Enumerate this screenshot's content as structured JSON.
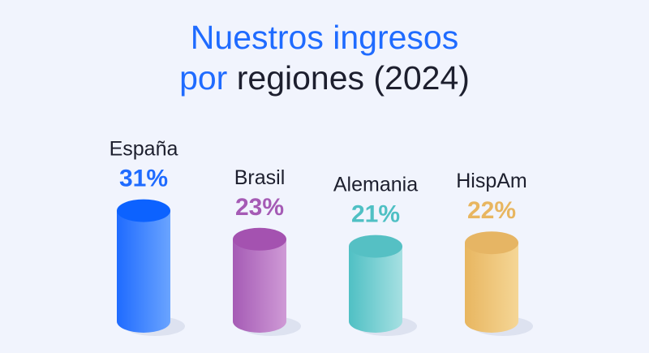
{
  "chart_data": {
    "type": "bar",
    "title_line1": "Nuestros ingresos",
    "title_line2_accent": "por",
    "title_line2_rest": "regiones (2024)",
    "categories": [
      "España",
      "Brasil",
      "Alemania",
      "HispAm"
    ],
    "values": [
      31,
      23,
      21,
      22
    ],
    "labels": [
      "31%",
      "23%",
      "21%",
      "22%"
    ],
    "unit": "%",
    "colors": [
      "#1f6bff",
      "#a55bb5",
      "#4fc0c4",
      "#e8b660"
    ],
    "colors_light": [
      "#6aa4ff",
      "#cf9ad6",
      "#a6e0e2",
      "#f5d696"
    ],
    "colors_top": [
      "#0c62ff",
      "#a452b0",
      "#55c0c4",
      "#e6b564"
    ],
    "grid": false,
    "legend": "none"
  }
}
